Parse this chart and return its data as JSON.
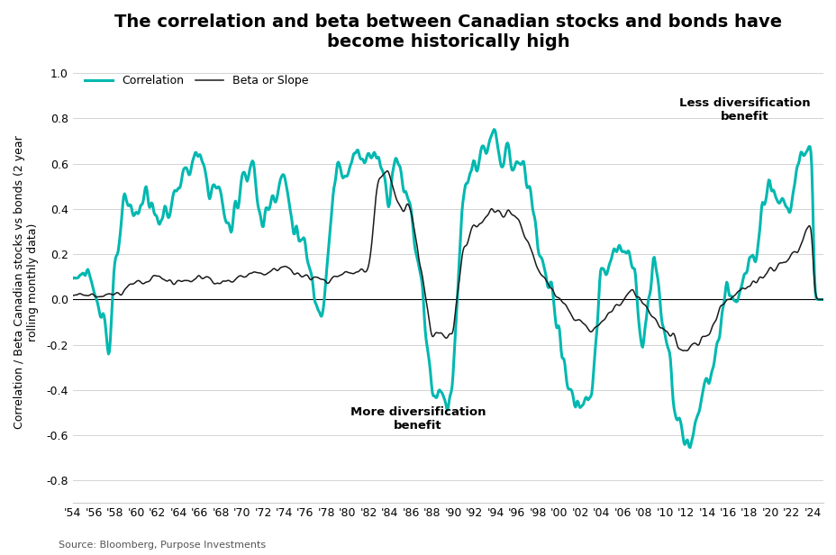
{
  "title": "The correlation and beta between Canadian stocks and bonds have\nbecome historically high",
  "ylabel": "Correlation / Beta Canadian stocks vs bonds (2 year\nrolling monthly data)",
  "source": "Source: Bloomberg, Purpose Investments",
  "correlation_color": "#00b8b0",
  "beta_color": "#1a1a1a",
  "background_color": "#ffffff",
  "ylim": [
    -0.9,
    1.05
  ],
  "yticks": [
    -0.8,
    -0.6,
    -0.4,
    -0.2,
    0.0,
    0.2,
    0.4,
    0.6,
    0.8,
    1.0
  ],
  "annotation_less": "Less diversification\nbenefit",
  "annotation_more": "More diversification\nbenefit",
  "legend_correlation": "Correlation",
  "legend_beta": "Beta or Slope",
  "title_fontsize": 14,
  "label_fontsize": 9,
  "tick_fontsize": 9,
  "corr_linewidth": 2.2,
  "beta_linewidth": 1.1
}
